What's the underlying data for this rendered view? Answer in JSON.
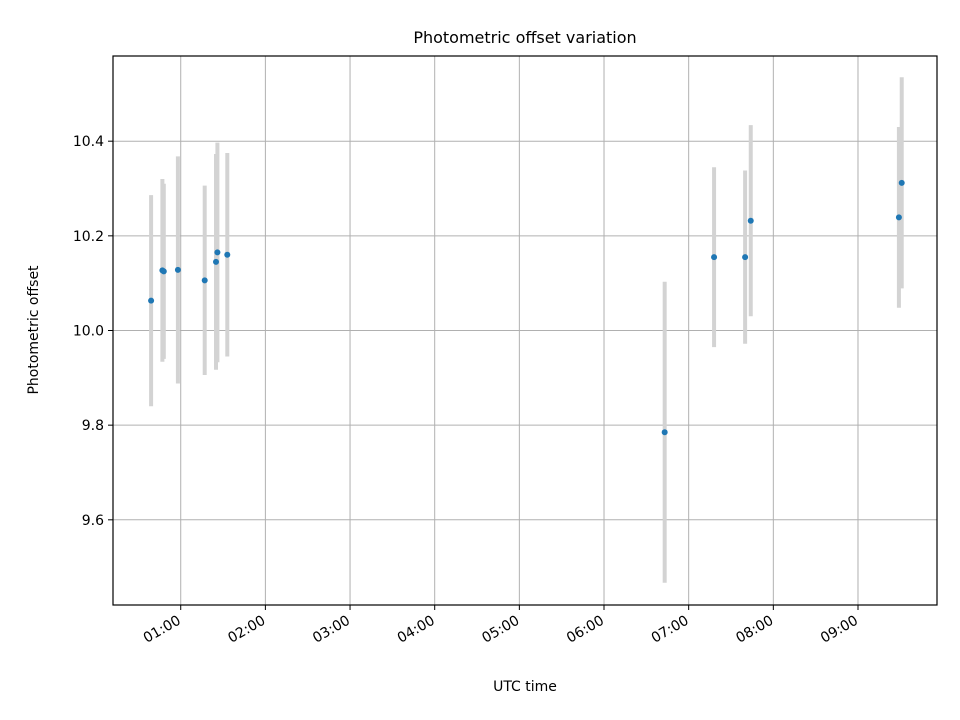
{
  "chart_data": {
    "type": "scatter",
    "title": "Photometric offset variation",
    "xlabel": "UTC time",
    "ylabel": "Photometric offset",
    "x_unit": "UTC",
    "xlim": [
      "00:12",
      "09:56"
    ],
    "ylim": [
      9.42,
      10.58
    ],
    "x_ticks": [
      "01:00",
      "02:00",
      "03:00",
      "04:00",
      "05:00",
      "06:00",
      "07:00",
      "08:00",
      "09:00"
    ],
    "y_ticks": [
      "9.6",
      "9.8",
      "10.0",
      "10.2",
      "10.4"
    ],
    "grid": true,
    "point_color": "#1f77b4",
    "errorbar_color": "#d3d3d3",
    "points": [
      {
        "x": "00:39",
        "y": 10.063,
        "err": 0.223
      },
      {
        "x": "00:47",
        "y": 10.127,
        "err": 0.193
      },
      {
        "x": "00:48",
        "y": 10.125,
        "err": 0.185
      },
      {
        "x": "00:58",
        "y": 10.128,
        "err": 0.24
      },
      {
        "x": "01:17",
        "y": 10.106,
        "err": 0.2
      },
      {
        "x": "01:25",
        "y": 10.145,
        "err": 0.228
      },
      {
        "x": "01:26",
        "y": 10.165,
        "err": 0.232
      },
      {
        "x": "01:33",
        "y": 10.16,
        "err": 0.215
      },
      {
        "x": "06:43",
        "y": 9.785,
        "err": 0.318
      },
      {
        "x": "07:18",
        "y": 10.155,
        "err": 0.19
      },
      {
        "x": "07:40",
        "y": 10.155,
        "err": 0.183
      },
      {
        "x": "07:44",
        "y": 10.232,
        "err": 0.202
      },
      {
        "x": "09:29",
        "y": 10.239,
        "err": 0.191
      },
      {
        "x": "09:31",
        "y": 10.312,
        "err": 0.223
      }
    ]
  }
}
